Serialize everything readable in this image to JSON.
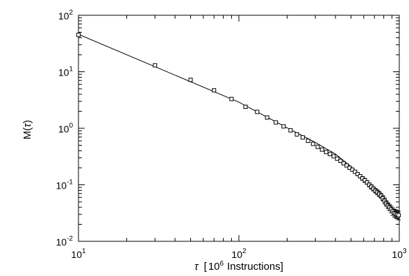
{
  "chart_data": {
    "type": "scatter",
    "title": "",
    "xlabel": {
      "symbol": "τ",
      "bracket_open": "[",
      "base": "10",
      "exponent": "6",
      "unit": "Instructions",
      "bracket_close": "]"
    },
    "ylabel": {
      "prefix": "M(",
      "symbol": "τ",
      "suffix": ")"
    },
    "x_scale": "log",
    "y_scale": "log",
    "xlim": [
      10,
      1000
    ],
    "ylim": [
      0.01,
      100
    ],
    "grid": false,
    "legend": "none",
    "x_ticks": [
      {
        "value": 10,
        "base": "10",
        "exp": "1"
      },
      {
        "value": 100,
        "base": "10",
        "exp": "2"
      },
      {
        "value": 1000,
        "base": "10",
        "exp": "3"
      }
    ],
    "y_ticks": [
      {
        "value": 0.01,
        "base": "10",
        "exp": "-2"
      },
      {
        "value": 0.1,
        "base": "10",
        "exp": "-1"
      },
      {
        "value": 1,
        "base": "10",
        "exp": "0"
      },
      {
        "value": 10,
        "base": "10",
        "exp": "1"
      },
      {
        "value": 100,
        "base": "10",
        "exp": "2"
      }
    ],
    "series": [
      {
        "kind": "markers",
        "marker": "square",
        "x": [
          10,
          30,
          50,
          70,
          90,
          110,
          130,
          150,
          170,
          190,
          210,
          230,
          250,
          270,
          290,
          310,
          330,
          350,
          370,
          390,
          410,
          430,
          450,
          470,
          490,
          510,
          530,
          550,
          570,
          590,
          610,
          630,
          650,
          670,
          690,
          710,
          730,
          750,
          770,
          790,
          810,
          830,
          850,
          870,
          890,
          910,
          930,
          950,
          970,
          990
        ],
        "y": [
          45,
          13,
          7.2,
          4.7,
          3.3,
          2.4,
          1.95,
          1.55,
          1.27,
          1.08,
          0.92,
          0.78,
          0.69,
          0.6,
          0.53,
          0.47,
          0.42,
          0.38,
          0.35,
          0.32,
          0.29,
          0.265,
          0.24,
          0.22,
          0.2,
          0.185,
          0.17,
          0.155,
          0.142,
          0.13,
          0.12,
          0.11,
          0.1,
          0.092,
          0.085,
          0.079,
          0.074,
          0.069,
          0.064,
          0.058,
          0.052,
          0.047,
          0.043,
          0.04,
          0.037,
          0.034,
          0.032,
          0.031,
          0.03,
          0.029
        ],
        "yerr": [
          0,
          0,
          0,
          0,
          0,
          0,
          0,
          0,
          0,
          0,
          0,
          0,
          0,
          0,
          0,
          0.01,
          0.01,
          0.01,
          0.01,
          0.01,
          0.01,
          0.01,
          0.01,
          0.01,
          0.01,
          0.01,
          0.01,
          0.01,
          0.01,
          0.01,
          0.01,
          0.008,
          0.008,
          0.008,
          0.007,
          0.007,
          0.007,
          0.007,
          0.006,
          0.006,
          0.006,
          0.005,
          0.005,
          0.005,
          0.005,
          0.005,
          0.005,
          0.005,
          0.005,
          0.005
        ]
      },
      {
        "kind": "line",
        "x": [
          10,
          100,
          200,
          300,
          400,
          500,
          600,
          700,
          800,
          900,
          1000
        ],
        "y": [
          46,
          2.9,
          1.02,
          0.56,
          0.35,
          0.21,
          0.127,
          0.083,
          0.054,
          0.037,
          0.027
        ]
      }
    ]
  }
}
